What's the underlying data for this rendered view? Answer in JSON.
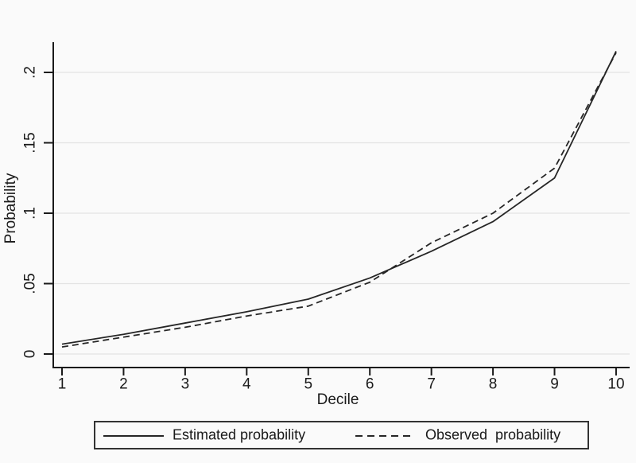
{
  "chart_data": {
    "type": "line",
    "title": "",
    "xlabel": "Decile",
    "ylabel": "Probability",
    "x": [
      1,
      2,
      3,
      4,
      5,
      6,
      7,
      8,
      9,
      10
    ],
    "x_tick_labels": [
      "1",
      "2",
      "3",
      "4",
      "5",
      "6",
      "7",
      "8",
      "9",
      "10"
    ],
    "y_ticks": [
      0,
      0.05,
      0.1,
      0.15,
      0.2
    ],
    "y_tick_labels": [
      "0",
      ".05",
      ".1",
      ".15",
      ".2"
    ],
    "ylim": [
      0,
      0.222
    ],
    "xlim": [
      0.85,
      10.25
    ],
    "grid": "horizontal",
    "legend_position": "bottom-outside",
    "series": [
      {
        "name": "Estimated probability",
        "style": "solid",
        "values": [
          0.007,
          0.014,
          0.022,
          0.03,
          0.039,
          0.054,
          0.073,
          0.094,
          0.125,
          0.215
        ]
      },
      {
        "name": "Observed  probability",
        "style": "dashed",
        "values": [
          0.005,
          0.012,
          0.019,
          0.027,
          0.034,
          0.051,
          0.079,
          0.1,
          0.132,
          0.214
        ]
      }
    ],
    "colors": {
      "line": "#262626",
      "axis": "#1a1a1a",
      "gridline": "#e3e3e3",
      "background": "#fafafa",
      "legend_border": "#333333"
    }
  }
}
